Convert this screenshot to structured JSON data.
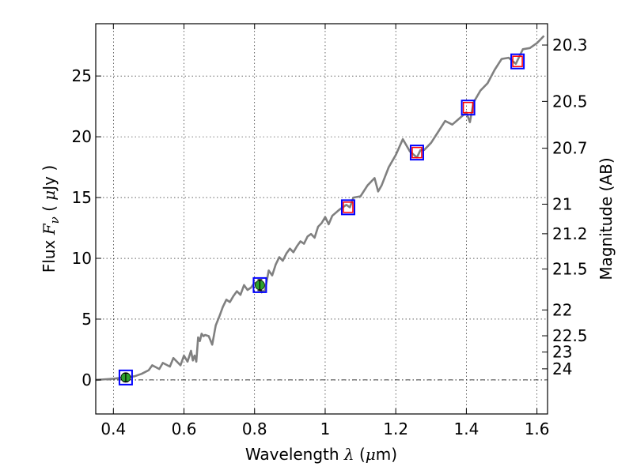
{
  "chart_data": {
    "type": "line",
    "xlabel": {
      "prefix": "Wavelength  ",
      "symbol": "λ",
      "unit_open": " (",
      "unit_mu": "μ",
      "unit_rest": "m)"
    },
    "ylabel": {
      "prefix": "Flux  ",
      "symbol": "F",
      "sub": "ν",
      "unit_open": "  (  ",
      "unit_mu": "μ",
      "unit_rest": "Jy )"
    },
    "y2label": "Magnitude (AB)",
    "xlim": [
      0.35,
      1.63
    ],
    "ylim": [
      -2.8,
      29.3
    ],
    "x_ticks": [
      0.4,
      0.6,
      0.8,
      1.0,
      1.2,
      1.4,
      1.6
    ],
    "x_tick_labels": [
      "0.4",
      "0.6",
      "0.8",
      "1",
      "1.2",
      "1.4",
      "1.6"
    ],
    "y_ticks": [
      0,
      5,
      10,
      15,
      20,
      25
    ],
    "y_tick_labels": [
      "0",
      "5",
      "10",
      "15",
      "20",
      "25"
    ],
    "magnitude_ticks": [
      20.3,
      20.5,
      20.7,
      21,
      21.2,
      21.5,
      22,
      22.5,
      23,
      24
    ],
    "magnitude_tick_labels": [
      "20.3",
      "20.5",
      "20.7",
      "21",
      "21.2",
      "21.5",
      "22",
      "22.5",
      "23",
      "24"
    ],
    "grid": true,
    "series": [
      {
        "kind": "model_spectrum",
        "color": "#808080",
        "x": [
          0.35,
          0.4,
          0.43,
          0.46,
          0.48,
          0.5,
          0.51,
          0.53,
          0.54,
          0.56,
          0.57,
          0.59,
          0.6,
          0.61,
          0.62,
          0.625,
          0.63,
          0.635,
          0.64,
          0.645,
          0.65,
          0.655,
          0.66,
          0.67,
          0.68,
          0.69,
          0.7,
          0.71,
          0.72,
          0.73,
          0.74,
          0.75,
          0.76,
          0.77,
          0.78,
          0.79,
          0.8,
          0.81,
          0.82,
          0.83,
          0.84,
          0.85,
          0.86,
          0.87,
          0.88,
          0.89,
          0.9,
          0.91,
          0.92,
          0.93,
          0.94,
          0.95,
          0.96,
          0.97,
          0.98,
          0.99,
          1.0,
          1.01,
          1.02,
          1.04,
          1.06,
          1.07,
          1.08,
          1.1,
          1.12,
          1.14,
          1.15,
          1.16,
          1.18,
          1.2,
          1.22,
          1.24,
          1.26,
          1.27,
          1.28,
          1.3,
          1.32,
          1.34,
          1.36,
          1.38,
          1.4,
          1.41,
          1.42,
          1.44,
          1.46,
          1.48,
          1.5,
          1.52,
          1.54,
          1.56,
          1.58,
          1.6,
          1.62
        ],
        "y": [
          0.0,
          0.1,
          0.2,
          0.3,
          0.5,
          0.8,
          1.2,
          0.9,
          1.4,
          1.1,
          1.8,
          1.2,
          2.0,
          1.5,
          2.4,
          1.6,
          2.0,
          1.5,
          3.5,
          3.2,
          3.8,
          3.6,
          3.7,
          3.6,
          2.9,
          4.5,
          5.2,
          6.0,
          6.6,
          6.4,
          6.9,
          7.3,
          7.0,
          7.8,
          7.4,
          7.6,
          8.0,
          7.8,
          7.2,
          7.4,
          9.0,
          8.6,
          9.5,
          10.1,
          9.8,
          10.4,
          10.8,
          10.5,
          11.0,
          11.4,
          11.2,
          11.8,
          12.0,
          11.7,
          12.6,
          12.9,
          13.4,
          12.8,
          13.5,
          14.0,
          14.4,
          14.2,
          15.0,
          15.1,
          16.0,
          16.6,
          15.5,
          16.0,
          17.5,
          18.5,
          19.8,
          18.8,
          18.3,
          18.9,
          18.9,
          19.5,
          20.4,
          21.3,
          21.0,
          21.5,
          22.0,
          21.2,
          22.8,
          23.8,
          24.4,
          25.5,
          26.4,
          26.5,
          26.0,
          27.2,
          27.3,
          27.7,
          28.3
        ]
      },
      {
        "kind": "observed_photometry",
        "color": "#2ca02c",
        "x": [
          0.435,
          0.815
        ],
        "y": [
          0.2,
          7.8
        ],
        "yerr": [
          0.35,
          0.45
        ]
      },
      {
        "kind": "model_photometry",
        "color": "#0000ff",
        "x": [
          0.435,
          0.815,
          1.065,
          1.26,
          1.405,
          1.545
        ],
        "y": [
          0.2,
          7.8,
          14.2,
          18.7,
          22.4,
          26.2
        ]
      },
      {
        "kind": "upper_limits",
        "color": "#ff0000",
        "x": [
          1.065,
          1.26,
          1.405,
          1.545
        ],
        "y": [
          14.2,
          18.7,
          22.4,
          26.2
        ]
      }
    ]
  }
}
